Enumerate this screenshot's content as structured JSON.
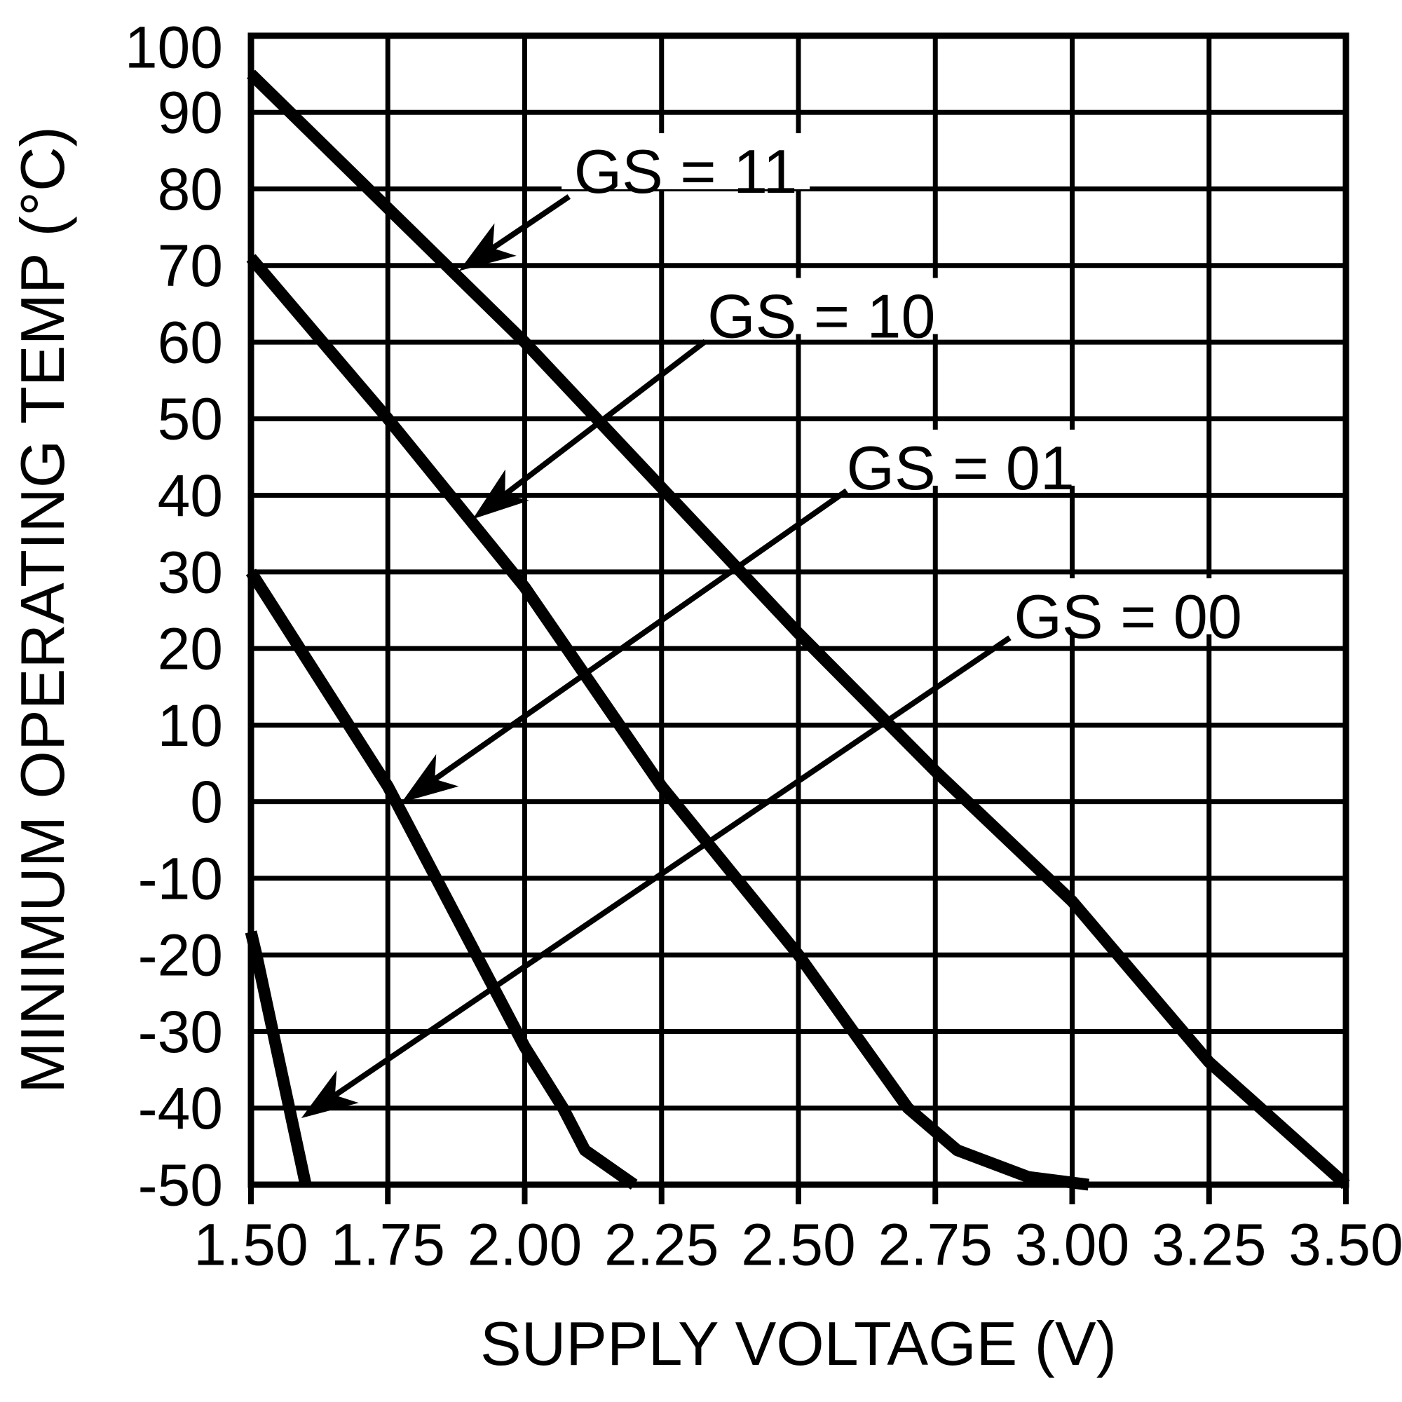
{
  "chart_data": {
    "type": "line",
    "title": "",
    "xlabel": "SUPPLY VOLTAGE (V)",
    "ylabel": "MINIMUM OPERATING TEMP (°C)",
    "xlim": [
      1.5,
      3.5
    ],
    "ylim": [
      -50,
      100
    ],
    "grid": true,
    "legend_position": "inline-annotations",
    "x_ticks": [
      1.5,
      1.75,
      2.0,
      2.25,
      2.5,
      2.75,
      3.0,
      3.25,
      3.5
    ],
    "x_tick_labels": [
      "1.50",
      "1.75",
      "2.00",
      "2.25",
      "2.50",
      "2.75",
      "3.00",
      "3.25",
      "3.50"
    ],
    "y_ticks": [
      100,
      90,
      80,
      70,
      60,
      50,
      40,
      30,
      20,
      10,
      0,
      -10,
      -20,
      -30,
      -40,
      -50
    ],
    "y_tick_labels": [
      "100",
      "90",
      "80",
      "70",
      "60",
      "50",
      "40",
      "30",
      "20",
      "10",
      "0",
      "-10",
      "-20",
      "-30",
      "-40",
      "-50"
    ],
    "series": [
      {
        "name": "GS = 11",
        "points": [
          [
            1.5,
            95
          ],
          [
            1.75,
            77.5
          ],
          [
            2.0,
            60
          ],
          [
            2.25,
            41
          ],
          [
            2.5,
            22
          ],
          [
            2.75,
            4
          ],
          [
            3.0,
            -13
          ],
          [
            3.25,
            -34
          ],
          [
            3.5,
            -50
          ]
        ]
      },
      {
        "name": "GS = 10",
        "points": [
          [
            1.5,
            71
          ],
          [
            1.75,
            50
          ],
          [
            2.0,
            28
          ],
          [
            2.25,
            2
          ],
          [
            2.5,
            -20
          ],
          [
            2.6,
            -30
          ],
          [
            2.7,
            -40
          ],
          [
            2.79,
            -45.5
          ],
          [
            2.92,
            -49
          ],
          [
            3.03,
            -50
          ]
        ]
      },
      {
        "name": "GS = 01",
        "points": [
          [
            1.5,
            30
          ],
          [
            1.75,
            2
          ],
          [
            2.0,
            -32
          ],
          [
            2.07,
            -40
          ],
          [
            2.11,
            -45.5
          ],
          [
            2.2,
            -50
          ]
        ]
      },
      {
        "name": "GS = 00",
        "points": [
          [
            1.5,
            -17
          ],
          [
            1.51,
            -20
          ],
          [
            1.54,
            -30
          ],
          [
            1.57,
            -40
          ],
          [
            1.6,
            -50
          ]
        ]
      }
    ],
    "annotations": [
      {
        "label": "GS = 11",
        "label_at": [
          2.294,
          82.7
        ],
        "arrow_from": [
          2.081,
          79.0
        ],
        "arrow_to": [
          1.88,
          69.3
        ]
      },
      {
        "label": "GS = 10",
        "label_at": [
          2.542,
          63.8
        ],
        "arrow_from": [
          2.33,
          60.1
        ],
        "arrow_to": [
          1.905,
          36.9
        ]
      },
      {
        "label": "GS = 01",
        "label_at": [
          2.796,
          44.0
        ],
        "arrow_from": [
          2.588,
          40.6
        ],
        "arrow_to": [
          1.775,
          -0.1
        ]
      },
      {
        "label": "GS = 00",
        "label_at": [
          3.102,
          24.6
        ],
        "arrow_from": [
          2.886,
          21.4
        ],
        "arrow_to": [
          1.592,
          -41.3
        ]
      }
    ],
    "colors": {
      "foreground": "#000000",
      "background": "#ffffff"
    }
  }
}
